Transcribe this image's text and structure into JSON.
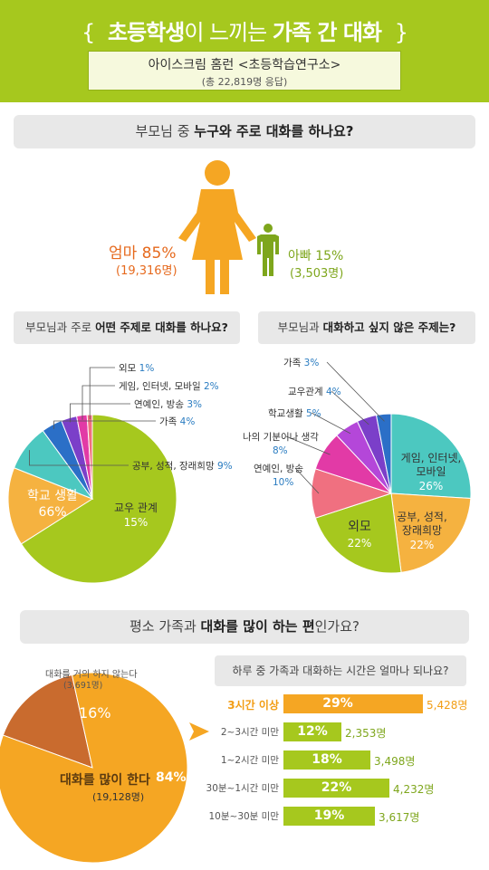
{
  "header": {
    "title_part1": "초등학생",
    "title_part2": "이 느끼는 ",
    "title_part3": "가족 간 대화",
    "brace_left": "{",
    "brace_right": "}",
    "source": "아이스크림 홈런 <초등학습연구소>",
    "respondents": "(총 22,819명 응답)"
  },
  "colors": {
    "brand_green": "#a6c81e",
    "orange": "#f5a623",
    "mom_orange": "#e66a1e",
    "dad_green": "#7ea61c",
    "dark_orange": "#c96b2e"
  },
  "section1": {
    "question_part1": "부모님 중 ",
    "question_part2": "누구와 주로 대화를 하나요?",
    "mom_label": "엄마 85%",
    "mom_count": "(19,316명)",
    "dad_label": "아빠 15%",
    "dad_count": "(3,503명)"
  },
  "section2": {
    "question_part1": "부모님과 주로 ",
    "question_part2": "어떤 주제로 대화를 하나요?"
  },
  "section3": {
    "question_part1": "부모님과 ",
    "question_part2": "대화하고 싶지 않은 주제는?"
  },
  "section4": {
    "question_part1": "평소 가족과 ",
    "question_part2": "대화를 많이 하는 편",
    "question_part3": "인가요?",
    "no_label": "대화를 거의 하지 않는다",
    "no_count": "(3,691명)",
    "no_pct": "16%",
    "yes_label": "대화를 많이 한다",
    "yes_pct": "84%",
    "yes_count": "(19,128명)"
  },
  "section5": {
    "question": "하루 중 가족과 대화하는 시간은 얼마나 되나요?"
  },
  "chart_data": [
    {
      "type": "bar",
      "categories": [
        "엄마",
        "아빠"
      ],
      "values": [
        85,
        15
      ],
      "counts": [
        "19,316명",
        "3,503명"
      ],
      "title": "부모님 중 누구와 주로 대화를 하나요?"
    },
    {
      "type": "pie",
      "title": "부모님과 주로 어떤 주제로 대화를 하나요?",
      "slices": [
        {
          "name": "학교 생활",
          "value": 66,
          "color": "#a6c81e"
        },
        {
          "name": "교우 관계",
          "value": 15,
          "color": "#f5b240"
        },
        {
          "name": "공부, 성적, 장래희망",
          "value": 9,
          "color": "#4cc8c0"
        },
        {
          "name": "가족",
          "value": 4,
          "color": "#2b6fc7"
        },
        {
          "name": "연예인, 방송",
          "value": 3,
          "color": "#7b3fc9"
        },
        {
          "name": "게임, 인터넷, 모바일",
          "value": 2,
          "color": "#e23aa6"
        },
        {
          "name": "외모",
          "value": 1,
          "color": "#f07080"
        }
      ]
    },
    {
      "type": "pie",
      "title": "부모님과 대화하고 싶지 않은 주제는?",
      "slices": [
        {
          "name": "게임, 인터넷, 모바일",
          "value": 26,
          "color": "#4cc8c0"
        },
        {
          "name": "공부, 성적, 장래희망",
          "value": 22,
          "color": "#f5b240"
        },
        {
          "name": "외모",
          "value": 22,
          "color": "#a6c81e"
        },
        {
          "name": "연예인, 방송",
          "value": 10,
          "color": "#f07080"
        },
        {
          "name": "나의 기분이나 생각",
          "value": 8,
          "color": "#e23aa6"
        },
        {
          "name": "학교생활",
          "value": 5,
          "color": "#b447d9"
        },
        {
          "name": "교우관계",
          "value": 4,
          "color": "#7b3fc9"
        },
        {
          "name": "가족",
          "value": 3,
          "color": "#2b6fc7"
        }
      ]
    },
    {
      "type": "pie",
      "title": "평소 가족과 대화를 많이 하는 편인가요?",
      "slices": [
        {
          "name": "대화를 많이 한다",
          "value": 84,
          "color": "#f5a623"
        },
        {
          "name": "대화를 거의 하지 않는다",
          "value": 16,
          "color": "#c96b2e"
        }
      ]
    },
    {
      "type": "bar",
      "title": "하루 중 가족과 대화하는 시간은 얼마나 되나요?",
      "categories": [
        "3시간 이상",
        "2~3시간 미만",
        "1~2시간 미만",
        "30분~1시간 미만",
        "10분~30분 미만"
      ],
      "values": [
        29,
        12,
        18,
        22,
        19
      ],
      "counts": [
        "5,428명",
        "2,353명",
        "3,498명",
        "4,232명",
        "3,617명"
      ]
    }
  ]
}
